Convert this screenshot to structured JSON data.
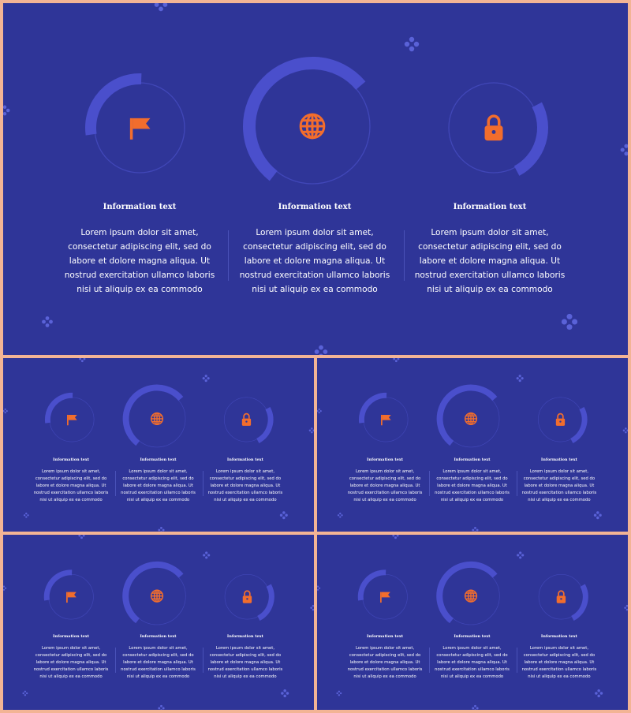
{
  "colors": {
    "slide_bg": "#2f3598",
    "frame": "#f3b495",
    "ring_thick": "#4a4fcc",
    "ring_thin": "#4147b8",
    "icon": "#f26d2d",
    "sparkle": "#5a62d8"
  },
  "columns": [
    {
      "icon": "flag-icon",
      "title": "Information text",
      "lines": [
        "Lorem ipsum dolor sit amet,",
        "consectetur adipiscing elit, sed do",
        "labore et dolore magna aliqua. Ut",
        "nostrud exercitation ullamco laboris",
        "nisi ut aliquip ex ea commodo"
      ]
    },
    {
      "icon": "globe-icon",
      "title": "Information text",
      "lines": [
        "Lorem ipsum dolor sit amet,",
        "consectetur adipiscing elit, sed do",
        "labore et dolore magna aliqua. Ut",
        "nostrud exercitation ullamco laboris",
        "nisi ut aliquip ex ea commodo"
      ]
    },
    {
      "icon": "lock-icon",
      "title": "Information text",
      "lines": [
        "Lorem ipsum dolor sit amet,",
        "consectetur adipiscing elit, sed do",
        "labore et dolore magna aliqua. Ut",
        "nostrud exercitation ullamco laboris",
        "nisi ut aliquip ex ea commodo"
      ]
    }
  ]
}
